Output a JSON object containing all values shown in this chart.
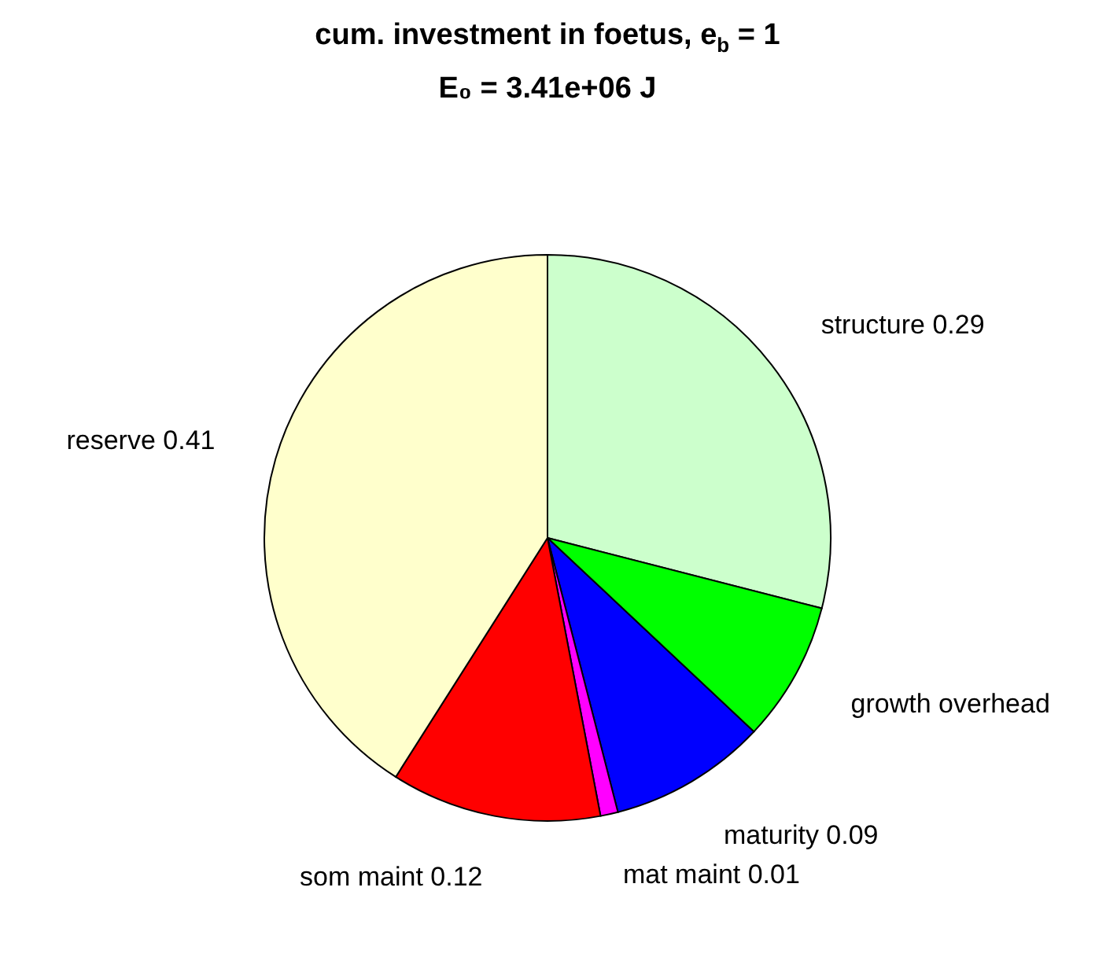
{
  "chart_data": {
    "type": "pie",
    "title": "cum. investment in foetus, e$_{b}$ = 1",
    "subtitle": "E₀ = 3.41e+06 J",
    "categories": [
      "structure",
      "growth overhead",
      "maturity",
      "mat maint",
      "som maint",
      "reserve"
    ],
    "values": [
      0.29,
      0.08,
      0.09,
      0.01,
      0.12,
      0.41
    ],
    "value_labels": [
      "0.29",
      null,
      "0.09",
      "0.01",
      "0.12",
      "0.41"
    ],
    "colors": [
      "#ccffcc",
      "#00ff00",
      "#0000ff",
      "#ff00ff",
      "#ff0000",
      "#ffffcc"
    ]
  }
}
